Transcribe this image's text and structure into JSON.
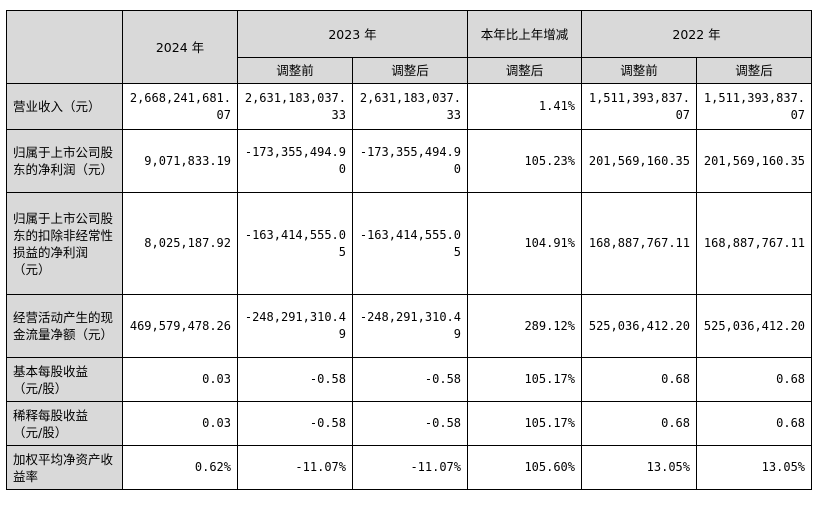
{
  "header": {
    "y2024": "2024 年",
    "y2023": "2023 年",
    "change": "本年比上年增减",
    "y2022": "2022 年",
    "before": "调整前",
    "after": "调整后"
  },
  "rows": [
    {
      "label": "营业收入（元）",
      "v2024": "2,668,241,681.07",
      "v2023_before": "2,631,183,037.33",
      "v2023_after": "2,631,183,037.33",
      "change": "1.41%",
      "v2022_before": "1,511,393,837.07",
      "v2022_after": "1,511,393,837.07"
    },
    {
      "label": "归属于上市公司股东的净利润（元）",
      "v2024": "9,071,833.19",
      "v2023_before": "-173,355,494.90",
      "v2023_after": "-173,355,494.90",
      "change": "105.23%",
      "v2022_before": "201,569,160.35",
      "v2022_after": "201,569,160.35"
    },
    {
      "label": "归属于上市公司股东的扣除非经常性损益的净利润（元）",
      "v2024": "8,025,187.92",
      "v2023_before": "-163,414,555.05",
      "v2023_after": "-163,414,555.05",
      "change": "104.91%",
      "v2022_before": "168,887,767.11",
      "v2022_after": "168,887,767.11"
    },
    {
      "label": "经营活动产生的现金流量净额（元）",
      "v2024": "469,579,478.26",
      "v2023_before": "-248,291,310.49",
      "v2023_after": "-248,291,310.49",
      "change": "289.12%",
      "v2022_before": "525,036,412.20",
      "v2022_after": "525,036,412.20"
    },
    {
      "label": "基本每股收益（元/股）",
      "v2024": "0.03",
      "v2023_before": "-0.58",
      "v2023_after": "-0.58",
      "change": "105.17%",
      "v2022_before": "0.68",
      "v2022_after": "0.68"
    },
    {
      "label": "稀释每股收益（元/股）",
      "v2024": "0.03",
      "v2023_before": "-0.58",
      "v2023_after": "-0.58",
      "change": "105.17%",
      "v2022_before": "0.68",
      "v2022_after": "0.68"
    },
    {
      "label": "加权平均净资产收益率",
      "v2024": "0.62%",
      "v2023_before": "-11.07%",
      "v2023_after": "-11.07%",
      "change": "105.60%",
      "v2022_before": "13.05%",
      "v2022_after": "13.05%"
    }
  ]
}
